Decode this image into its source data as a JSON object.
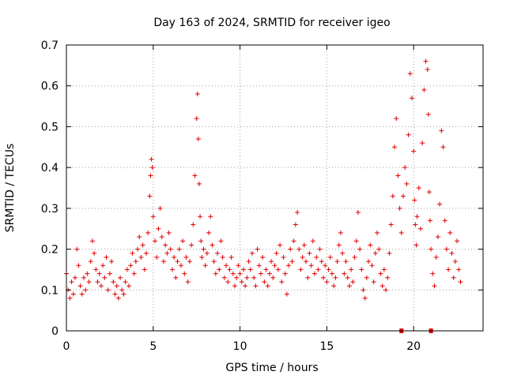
{
  "chart_data": {
    "type": "scatter",
    "title": "Day 163 of 2024, SRMTID for receiver igeo",
    "xlabel": "GPS time / hours",
    "ylabel": "SRMTID / TECUs",
    "xlim": [
      0,
      24
    ],
    "ylim": [
      0,
      0.7
    ],
    "xticks": [
      0,
      5,
      10,
      15,
      20
    ],
    "xtick_labels": [
      "0",
      "5",
      "10",
      "15",
      "20"
    ],
    "yticks": [
      0,
      0.1,
      0.2,
      0.3,
      0.4,
      0.5,
      0.6,
      0.7
    ],
    "ytick_labels": [
      "0",
      "0.1",
      "0.2",
      "0.3",
      "0.4",
      "0.5",
      "0.6",
      "0.7"
    ],
    "grid": true,
    "marker": "plus",
    "color": "#e00000",
    "series": [
      {
        "name": "SRMTID",
        "x": [
          0.0,
          0.1,
          0.2,
          0.3,
          0.4,
          0.5,
          0.6,
          0.7,
          0.8,
          0.9,
          1.0,
          1.1,
          1.2,
          1.3,
          1.4,
          1.5,
          1.6,
          1.7,
          1.8,
          1.9,
          2.0,
          2.1,
          2.2,
          2.3,
          2.4,
          2.5,
          2.6,
          2.7,
          2.8,
          2.9,
          3.0,
          3.1,
          3.2,
          3.3,
          3.4,
          3.5,
          3.6,
          3.7,
          3.8,
          3.9,
          4.0,
          4.1,
          4.2,
          4.3,
          4.4,
          4.5,
          4.6,
          4.7,
          4.8,
          4.85,
          4.9,
          4.95,
          5.0,
          5.1,
          5.2,
          5.3,
          5.4,
          5.5,
          5.6,
          5.7,
          5.8,
          5.9,
          6.0,
          6.1,
          6.2,
          6.3,
          6.4,
          6.5,
          6.6,
          6.7,
          6.8,
          6.9,
          7.0,
          7.1,
          7.2,
          7.3,
          7.4,
          7.5,
          7.55,
          7.6,
          7.65,
          7.7,
          7.75,
          7.8,
          7.9,
          8.0,
          8.1,
          8.2,
          8.3,
          8.4,
          8.5,
          8.6,
          8.7,
          8.8,
          8.9,
          9.0,
          9.1,
          9.2,
          9.3,
          9.4,
          9.5,
          9.6,
          9.7,
          9.8,
          9.9,
          10.0,
          10.1,
          10.2,
          10.3,
          10.4,
          10.5,
          10.6,
          10.7,
          10.8,
          10.9,
          11.0,
          11.1,
          11.2,
          11.3,
          11.4,
          11.5,
          11.6,
          11.7,
          11.8,
          11.9,
          12.0,
          12.1,
          12.2,
          12.3,
          12.4,
          12.5,
          12.6,
          12.7,
          12.8,
          12.9,
          13.0,
          13.1,
          13.2,
          13.3,
          13.4,
          13.5,
          13.6,
          13.7,
          13.8,
          13.9,
          14.0,
          14.1,
          14.2,
          14.3,
          14.4,
          14.5,
          14.6,
          14.7,
          14.8,
          14.9,
          15.0,
          15.1,
          15.2,
          15.3,
          15.4,
          15.5,
          15.6,
          15.7,
          15.8,
          15.9,
          16.0,
          16.1,
          16.2,
          16.3,
          16.4,
          16.5,
          16.6,
          16.7,
          16.8,
          16.9,
          17.0,
          17.1,
          17.2,
          17.3,
          17.4,
          17.5,
          17.6,
          17.7,
          17.8,
          17.9,
          18.0,
          18.1,
          18.2,
          18.3,
          18.4,
          18.5,
          18.6,
          18.7,
          18.8,
          18.9,
          19.0,
          19.1,
          19.2,
          19.3,
          19.4,
          19.5,
          19.6,
          19.7,
          19.8,
          19.9,
          20.0,
          20.05,
          20.1,
          20.15,
          20.2,
          20.3,
          20.4,
          20.5,
          20.6,
          20.7,
          20.8,
          20.85,
          20.9,
          20.95,
          21.0,
          21.1,
          21.2,
          21.3,
          21.4,
          21.5,
          21.6,
          21.7,
          21.8,
          21.9,
          22.0,
          22.1,
          22.2,
          22.3,
          22.4,
          22.5,
          22.6,
          22.7
        ],
        "y": [
          0.14,
          0.1,
          0.08,
          0.12,
          0.09,
          0.13,
          0.2,
          0.16,
          0.11,
          0.09,
          0.13,
          0.1,
          0.14,
          0.12,
          0.17,
          0.22,
          0.19,
          0.15,
          0.12,
          0.14,
          0.11,
          0.16,
          0.13,
          0.18,
          0.1,
          0.14,
          0.17,
          0.12,
          0.09,
          0.11,
          0.08,
          0.13,
          0.1,
          0.09,
          0.12,
          0.15,
          0.11,
          0.16,
          0.19,
          0.14,
          0.17,
          0.2,
          0.23,
          0.18,
          0.21,
          0.15,
          0.19,
          0.24,
          0.33,
          0.38,
          0.42,
          0.4,
          0.28,
          0.22,
          0.18,
          0.25,
          0.3,
          0.23,
          0.17,
          0.21,
          0.19,
          0.24,
          0.2,
          0.15,
          0.18,
          0.13,
          0.17,
          0.2,
          0.16,
          0.22,
          0.14,
          0.18,
          0.12,
          0.17,
          0.21,
          0.26,
          0.38,
          0.52,
          0.58,
          0.47,
          0.36,
          0.28,
          0.22,
          0.18,
          0.2,
          0.16,
          0.19,
          0.24,
          0.28,
          0.21,
          0.17,
          0.14,
          0.19,
          0.15,
          0.22,
          0.18,
          0.13,
          0.16,
          0.12,
          0.15,
          0.18,
          0.14,
          0.11,
          0.13,
          0.16,
          0.14,
          0.12,
          0.15,
          0.11,
          0.13,
          0.17,
          0.15,
          0.19,
          0.13,
          0.11,
          0.2,
          0.16,
          0.14,
          0.18,
          0.12,
          0.15,
          0.11,
          0.14,
          0.17,
          0.13,
          0.16,
          0.19,
          0.15,
          0.21,
          0.12,
          0.18,
          0.14,
          0.09,
          0.16,
          0.2,
          0.17,
          0.22,
          0.26,
          0.29,
          0.2,
          0.15,
          0.18,
          0.21,
          0.17,
          0.13,
          0.19,
          0.16,
          0.22,
          0.14,
          0.18,
          0.15,
          0.2,
          0.17,
          0.13,
          0.16,
          0.12,
          0.15,
          0.18,
          0.14,
          0.11,
          0.13,
          0.17,
          0.21,
          0.24,
          0.19,
          0.14,
          0.17,
          0.13,
          0.11,
          0.15,
          0.12,
          0.18,
          0.22,
          0.29,
          0.2,
          0.15,
          0.1,
          0.08,
          0.13,
          0.17,
          0.21,
          0.16,
          0.12,
          0.19,
          0.24,
          0.2,
          0.14,
          0.11,
          0.15,
          0.1,
          0.13,
          0.19,
          0.26,
          0.33,
          0.45,
          0.52,
          0.38,
          0.3,
          0.24,
          0.33,
          0.4,
          0.36,
          0.48,
          0.63,
          0.57,
          0.44,
          0.32,
          0.26,
          0.21,
          0.28,
          0.35,
          0.25,
          0.46,
          0.59,
          0.66,
          0.64,
          0.53,
          0.34,
          0.27,
          0.2,
          0.14,
          0.11,
          0.18,
          0.23,
          0.31,
          0.49,
          0.45,
          0.27,
          0.2,
          0.15,
          0.24,
          0.19,
          0.13,
          0.17,
          0.22,
          0.15,
          0.12
        ]
      }
    ],
    "baseline_markers": [
      {
        "x": 19.3,
        "y": 0
      },
      {
        "x": 21.0,
        "y": 0
      }
    ]
  }
}
